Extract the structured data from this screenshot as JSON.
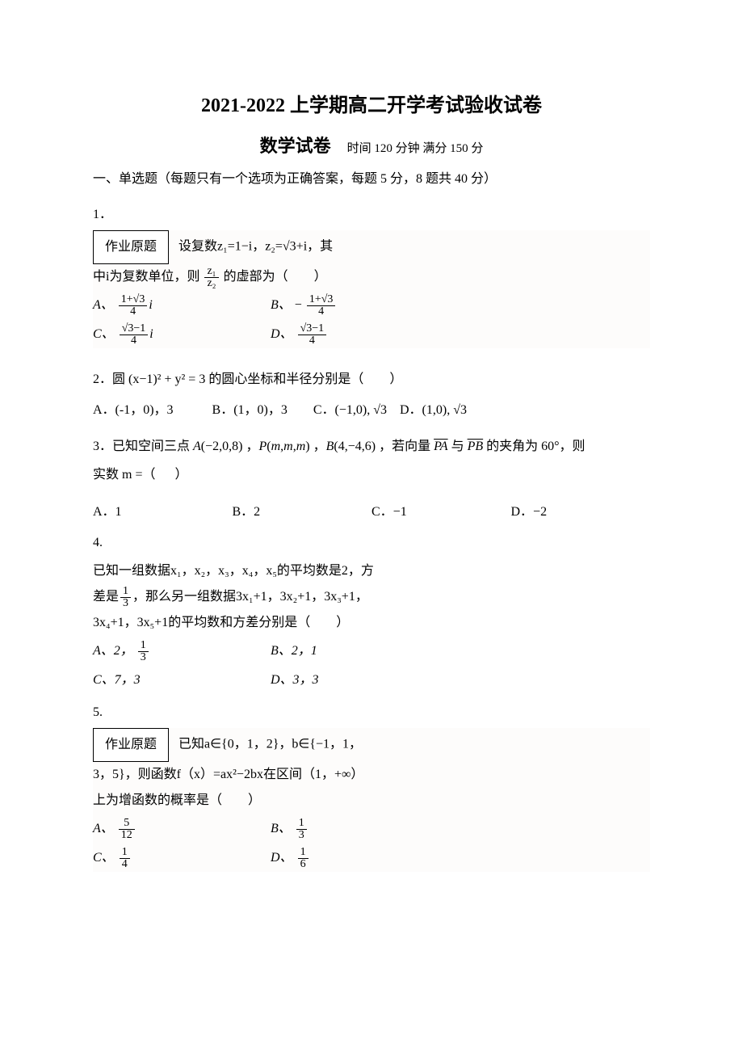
{
  "header": {
    "title": "2021-2022 上学期高二开学考试验收试卷",
    "subtitle": "数学试卷",
    "info": "时间 120 分钟  满分 150 分"
  },
  "section1": {
    "heading": "一、单选题（每题只有一个选项为正确答案，每题 5 分，8 题共 40 分）"
  },
  "q1": {
    "num": "1．",
    "box_label": "作业原题",
    "stem_part1": "设复数z₁=1−i，z₂=√3+i，其",
    "stem_part2_prefix": "中i为复数单位，则",
    "frac_num": "z₁",
    "frac_den": "z₂",
    "stem_part2_suffix": "的虚部为（　　）",
    "optA_label": "A、",
    "optA_num": "1+√3",
    "optA_den": "4",
    "optA_tail": "i",
    "optB_label": "B、",
    "optB_prefix": "−",
    "optB_num": "1+√3",
    "optB_den": "4",
    "optC_label": "C、",
    "optC_num": "√3−1",
    "optC_den": "4",
    "optC_tail": "i",
    "optD_label": "D、",
    "optD_num": "√3−1",
    "optD_den": "4"
  },
  "q2": {
    "stem": "2．圆 (x−1)² + y² = 3 的圆心坐标和半径分别是（　　）",
    "opts": "A．(-1，0)，3　　　B．(1，0)，3　　C．(−1,0), √3 D．(1,0), √3"
  },
  "q3": {
    "line1": "3．已知空间三点 A(−2,0,8) ，P(m,m,m) ，B(4,−4,6) ，若向量 PA 与 PB 的夹角为 60°，则",
    "line2": "实数 m =（ 　 ）",
    "optA": "A．1",
    "optB": "B．2",
    "optC": "C．−1",
    "optD": "D．−2"
  },
  "q4": {
    "num": "4.",
    "line1": "已知一组数据x₁，x₂，x₃，x₄，x₅的平均数是2，方",
    "line2_prefix": "差是",
    "line2_frac_num": "1",
    "line2_frac_den": "3",
    "line2_suffix": "，那么另一组数据3x₁+1，3x₂+1，3x₃+1，",
    "line3": "3x₄+1，3x₅+1的平均数和方差分别是（　　）",
    "optA_label": "A、2，",
    "optA_num": "1",
    "optA_den": "3",
    "optB": "B、2，1",
    "optC": "C、7，3",
    "optD": "D、3，3"
  },
  "q5": {
    "num": "5.",
    "box_label": "作业原题",
    "stem_part1": "已知a∈{0，1，2}，b∈{−1，1，",
    "stem_line2": "3，5}，则函数f（x）=ax²−2bx在区间（1，+∞）",
    "stem_line3": "上为增函数的概率是（　　）",
    "optA_label": "A、",
    "optA_num": "5",
    "optA_den": "12",
    "optB_label": "B、",
    "optB_num": "1",
    "optB_den": "3",
    "optC_label": "C、",
    "optC_num": "1",
    "optC_den": "4",
    "optD_label": "D、",
    "optD_num": "1",
    "optD_den": "6"
  }
}
